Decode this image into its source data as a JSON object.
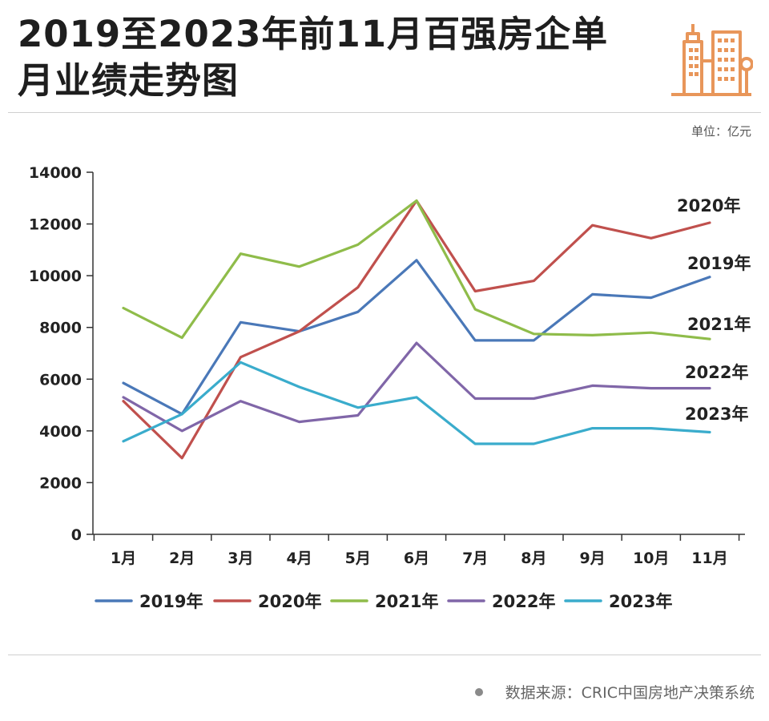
{
  "header": {
    "title_line1": "2019至2023年前11月百强房企单",
    "title_line2": "月业绩走势图",
    "unit": "单位：亿元",
    "logo_icon": "building-icon",
    "logo_color": "#e8965a"
  },
  "footer": {
    "source": "数据来源：CRIC中国房地产决策系统"
  },
  "chart_data": {
    "type": "line",
    "title": "2019至2023年前11月百强房企单月业绩走势图",
    "ylabel": "亿元",
    "xlabel": "",
    "ylim": [
      0,
      14000
    ],
    "yticks": [
      0,
      2000,
      4000,
      6000,
      8000,
      10000,
      12000,
      14000
    ],
    "grid": false,
    "legend_position": "bottom",
    "categories": [
      "1月",
      "2月",
      "3月",
      "4月",
      "5月",
      "6月",
      "7月",
      "8月",
      "9月",
      "10月",
      "11月"
    ],
    "series": [
      {
        "name": "2019年",
        "color": "#4a78b8",
        "values": [
          5850,
          4650,
          8200,
          7850,
          8600,
          10600,
          7500,
          7500,
          9280,
          9150,
          9950
        ]
      },
      {
        "name": "2020年",
        "color": "#c0504d",
        "values": [
          5150,
          2950,
          6850,
          7850,
          9550,
          12900,
          9400,
          9800,
          11950,
          11450,
          12050
        ]
      },
      {
        "name": "2021年",
        "color": "#8fbc4a",
        "values": [
          8750,
          7600,
          10850,
          10350,
          11200,
          12900,
          8700,
          7750,
          7700,
          7800,
          7550
        ]
      },
      {
        "name": "2022年",
        "color": "#8066a8",
        "values": [
          5300,
          4000,
          5150,
          4350,
          4600,
          7400,
          5250,
          5250,
          5750,
          5650,
          5650
        ]
      },
      {
        "name": "2023年",
        "color": "#3aaccc",
        "values": [
          3600,
          4650,
          6650,
          5700,
          4900,
          5300,
          3500,
          3500,
          4100,
          4100,
          3950
        ]
      }
    ],
    "end_labels": [
      "2020年",
      "2019年",
      "2021年",
      "2022年",
      "2023年"
    ]
  }
}
